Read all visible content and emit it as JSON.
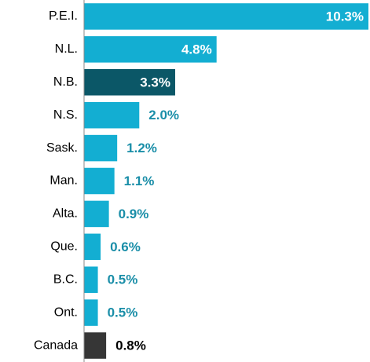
{
  "chart_data": {
    "type": "bar",
    "orientation": "horizontal",
    "categories": [
      "P.E.I.",
      "N.L.",
      "N.B.",
      "N.S.",
      "Sask.",
      "Man.",
      "Alta.",
      "Que.",
      "B.C.",
      "Ont.",
      "Canada"
    ],
    "values": [
      10.3,
      4.8,
      3.3,
      2.0,
      1.2,
      1.1,
      0.9,
      0.6,
      0.5,
      0.5,
      0.8
    ],
    "value_labels": [
      "10.3%",
      "4.8%",
      "3.3%",
      "2.0%",
      "1.2%",
      "1.1%",
      "0.9%",
      "0.6%",
      "0.5%",
      "0.5%",
      "0.8%"
    ],
    "colors": [
      "#13aed2",
      "#13aed2",
      "#0b5767",
      "#13aed2",
      "#13aed2",
      "#13aed2",
      "#13aed2",
      "#13aed2",
      "#13aed2",
      "#13aed2",
      "#363636"
    ],
    "label_colors": [
      "#ffffff",
      "#ffffff",
      "#ffffff",
      "#1a8ea8",
      "#1a8ea8",
      "#1a8ea8",
      "#1a8ea8",
      "#1a8ea8",
      "#1a8ea8",
      "#1a8ea8",
      "#000000"
    ],
    "xlim": [
      0,
      10.3
    ]
  }
}
